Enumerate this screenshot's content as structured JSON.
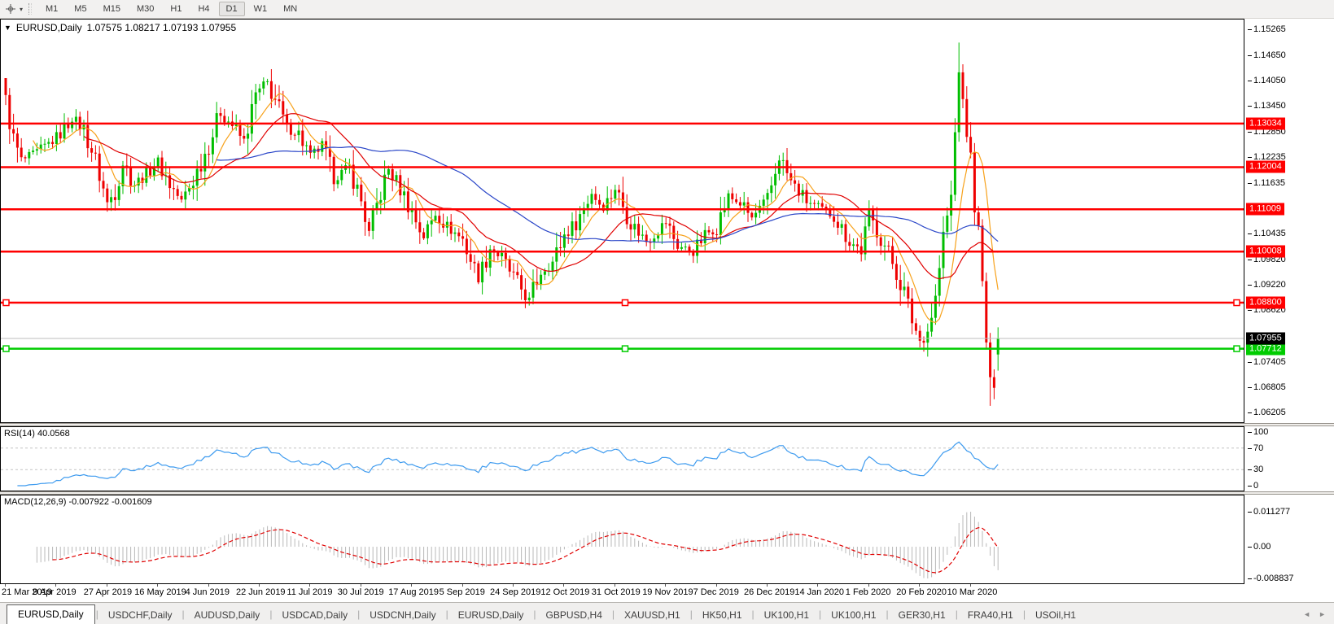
{
  "toolbar": {
    "timeframes": [
      "M1",
      "M5",
      "M15",
      "M30",
      "H1",
      "H4",
      "D1",
      "W1",
      "MN"
    ],
    "active_timeframe": "D1"
  },
  "chart": {
    "symbol_title": "EURUSD,Daily",
    "ohlc_text": "1.07575 1.08217 1.07193 1.07955"
  },
  "indicators": {
    "rsi_label": "RSI(14) 40.0568",
    "macd_label": "MACD(12,26,9) -0.007922 -0.001609"
  },
  "tabs": {
    "items": [
      {
        "label": "EURUSD,Daily",
        "active": true
      },
      {
        "label": "USDCHF,Daily",
        "active": false
      },
      {
        "label": "AUDUSD,Daily",
        "active": false
      },
      {
        "label": "USDCAD,Daily",
        "active": false
      },
      {
        "label": "USDCNH,Daily",
        "active": false
      },
      {
        "label": "EURUSD,Daily",
        "active": false
      },
      {
        "label": "GBPUSD,H4",
        "active": false
      },
      {
        "label": "XAUUSD,H1",
        "active": false
      },
      {
        "label": "HK50,H1",
        "active": false
      },
      {
        "label": "UK100,H1",
        "active": false
      },
      {
        "label": "UK100,H1",
        "active": false
      },
      {
        "label": "GER30,H1",
        "active": false
      },
      {
        "label": "FRA40,H1",
        "active": false
      },
      {
        "label": "USOil,H1",
        "active": false
      }
    ]
  },
  "chart_data": {
    "type": "candlestick",
    "symbol": "EURUSD",
    "timeframe": "Daily",
    "last_candle": {
      "open": 1.07575,
      "high": 1.08217,
      "low": 1.07193,
      "close": 1.07955
    },
    "ylim": [
      1.05973,
      1.15495
    ],
    "y_ticks": [
      "1.15265",
      "1.14650",
      "1.14050",
      "1.13450",
      "1.12850",
      "1.12235",
      "1.11635",
      "1.10435",
      "1.09820",
      "1.09220",
      "1.08620",
      "1.07405",
      "1.06805",
      "1.06205"
    ],
    "x_labels": [
      "21 Mar 2019",
      "9 Apr 2019",
      "27 Apr 2019",
      "16 May 2019",
      "4 Jun 2019",
      "22 Jun 2019",
      "11 Jul 2019",
      "30 Jul 2019",
      "17 Aug 2019",
      "5 Sep 2019",
      "24 Sep 2019",
      "12 Oct 2019",
      "31 Oct 2019",
      "19 Nov 2019",
      "7 Dec 2019",
      "26 Dec 2019",
      "14 Jan 2020",
      "1 Feb 2020",
      "20 Feb 2020",
      "10 Mar 2020"
    ],
    "num_candles": 255,
    "candles_per_label": 13,
    "x0": 6,
    "spacing": 4.8,
    "close_anchors": [
      [
        0,
        1.1355
      ],
      [
        2,
        1.1265
      ],
      [
        4,
        1.1215
      ],
      [
        8,
        1.1235
      ],
      [
        13,
        1.127
      ],
      [
        17,
        1.1315
      ],
      [
        20,
        1.129
      ],
      [
        23,
        1.1215
      ],
      [
        26,
        1.1115
      ],
      [
        28,
        1.1145
      ],
      [
        30,
        1.121
      ],
      [
        33,
        1.116
      ],
      [
        36,
        1.1185
      ],
      [
        39,
        1.1215
      ],
      [
        42,
        1.116
      ],
      [
        45,
        1.112
      ],
      [
        48,
        1.117
      ],
      [
        52,
        1.1255
      ],
      [
        55,
        1.133
      ],
      [
        58,
        1.13
      ],
      [
        61,
        1.126
      ],
      [
        64,
        1.137
      ],
      [
        67,
        1.14
      ],
      [
        69,
        1.136
      ],
      [
        72,
        1.129
      ],
      [
        75,
        1.128
      ],
      [
        78,
        1.1225
      ],
      [
        81,
        1.125
      ],
      [
        84,
        1.1175
      ],
      [
        88,
        1.12
      ],
      [
        91,
        1.112
      ],
      [
        93,
        1.1045
      ],
      [
        95,
        1.111
      ],
      [
        98,
        1.1195
      ],
      [
        101,
        1.115
      ],
      [
        104,
        1.1095
      ],
      [
        107,
        1.1035
      ],
      [
        110,
        1.109
      ],
      [
        113,
        1.106
      ],
      [
        117,
        1.103
      ],
      [
        121,
        1.0935
      ],
      [
        124,
        1.101
      ],
      [
        127,
        1.0985
      ],
      [
        130,
        1.094
      ],
      [
        134,
        1.0885
      ],
      [
        137,
        1.0955
      ],
      [
        140,
        1.0975
      ],
      [
        143,
        1.104
      ],
      [
        146,
        1.107
      ],
      [
        150,
        1.114
      ],
      [
        153,
        1.1105
      ],
      [
        156,
        1.115
      ],
      [
        160,
        1.107
      ],
      [
        164,
        1.1025
      ],
      [
        169,
        1.107
      ],
      [
        172,
        1.1015
      ],
      [
        176,
        1.1
      ],
      [
        179,
        1.104
      ],
      [
        182,
        1.106
      ],
      [
        185,
        1.113
      ],
      [
        188,
        1.1115
      ],
      [
        191,
        1.108
      ],
      [
        195,
        1.112
      ],
      [
        198,
        1.1225
      ],
      [
        201,
        1.1165
      ],
      [
        205,
        1.112
      ],
      [
        208,
        1.1105
      ],
      [
        212,
        1.1085
      ],
      [
        216,
        1.1025
      ],
      [
        219,
        1.1005
      ],
      [
        221,
        1.1085
      ],
      [
        224,
        1.1035
      ],
      [
        227,
        1.0975
      ],
      [
        230,
        1.0905
      ],
      [
        232,
        1.084
      ],
      [
        234,
        1.079
      ],
      [
        236,
        1.0815
      ],
      [
        238,
        1.089
      ],
      [
        240,
        1.1035
      ],
      [
        242,
        1.113
      ],
      [
        243,
        1.128
      ],
      [
        244,
        1.144
      ],
      [
        245,
        1.134
      ],
      [
        246,
        1.1285
      ],
      [
        247,
        1.122
      ],
      [
        248,
        1.1115
      ],
      [
        249,
        1.1045
      ],
      [
        250,
        1.092
      ],
      [
        251,
        1.079
      ],
      [
        252,
        1.068
      ],
      [
        253,
        1.07
      ],
      [
        254,
        1.07955
      ]
    ],
    "wick_overrides": {
      "0": {
        "h": 1.1375
      },
      "244": {
        "h": 1.1495
      },
      "252": {
        "l": 1.0636
      }
    },
    "moving_averages": [
      {
        "period": 8,
        "color": "#F7A11A"
      },
      {
        "period": 21,
        "color": "#E00000"
      },
      {
        "period": 55,
        "color": "#2A46C8"
      }
    ],
    "hlines": [
      {
        "price": 1.13034,
        "label": "1.13034",
        "color": "#FF0000",
        "selected": false
      },
      {
        "price": 1.12004,
        "label": "1.12004",
        "color": "#FF0000",
        "selected": false
      },
      {
        "price": 1.11009,
        "label": "1.11009",
        "color": "#FF0000",
        "selected": false
      },
      {
        "price": 1.10008,
        "label": "1.10008",
        "color": "#FF0000",
        "selected": false
      },
      {
        "price": 1.088,
        "label": "1.08800",
        "color": "#FF0000",
        "selected": true
      },
      {
        "price": 1.07712,
        "label": "1.07712",
        "color": "#00CC00",
        "selected": true
      }
    ],
    "current_price_line": {
      "price": 1.07955,
      "label": "1.07955",
      "line_color": "#BDBDBD",
      "label_bg": "#000000"
    },
    "colors": {
      "bull": "#00BE00",
      "bear": "#EE0000",
      "rsi": "#3E9BEF",
      "level_dash": "#C4C4C4",
      "macd_hist": "#B8B8B8",
      "macd_signal": "#E00000"
    },
    "rsi": {
      "period": 14,
      "levels": [
        70,
        30
      ],
      "ticks": [
        "100",
        "70",
        "30",
        "0"
      ],
      "tick_values": [
        100,
        70,
        30,
        0
      ],
      "last_value": 40.0568
    },
    "macd": {
      "fast": 12,
      "slow": 26,
      "signal": 9,
      "axis_labels": [
        "0.011277",
        "0.00",
        "-0.008837"
      ],
      "last_main": -0.007922,
      "last_signal": -0.001609
    }
  }
}
